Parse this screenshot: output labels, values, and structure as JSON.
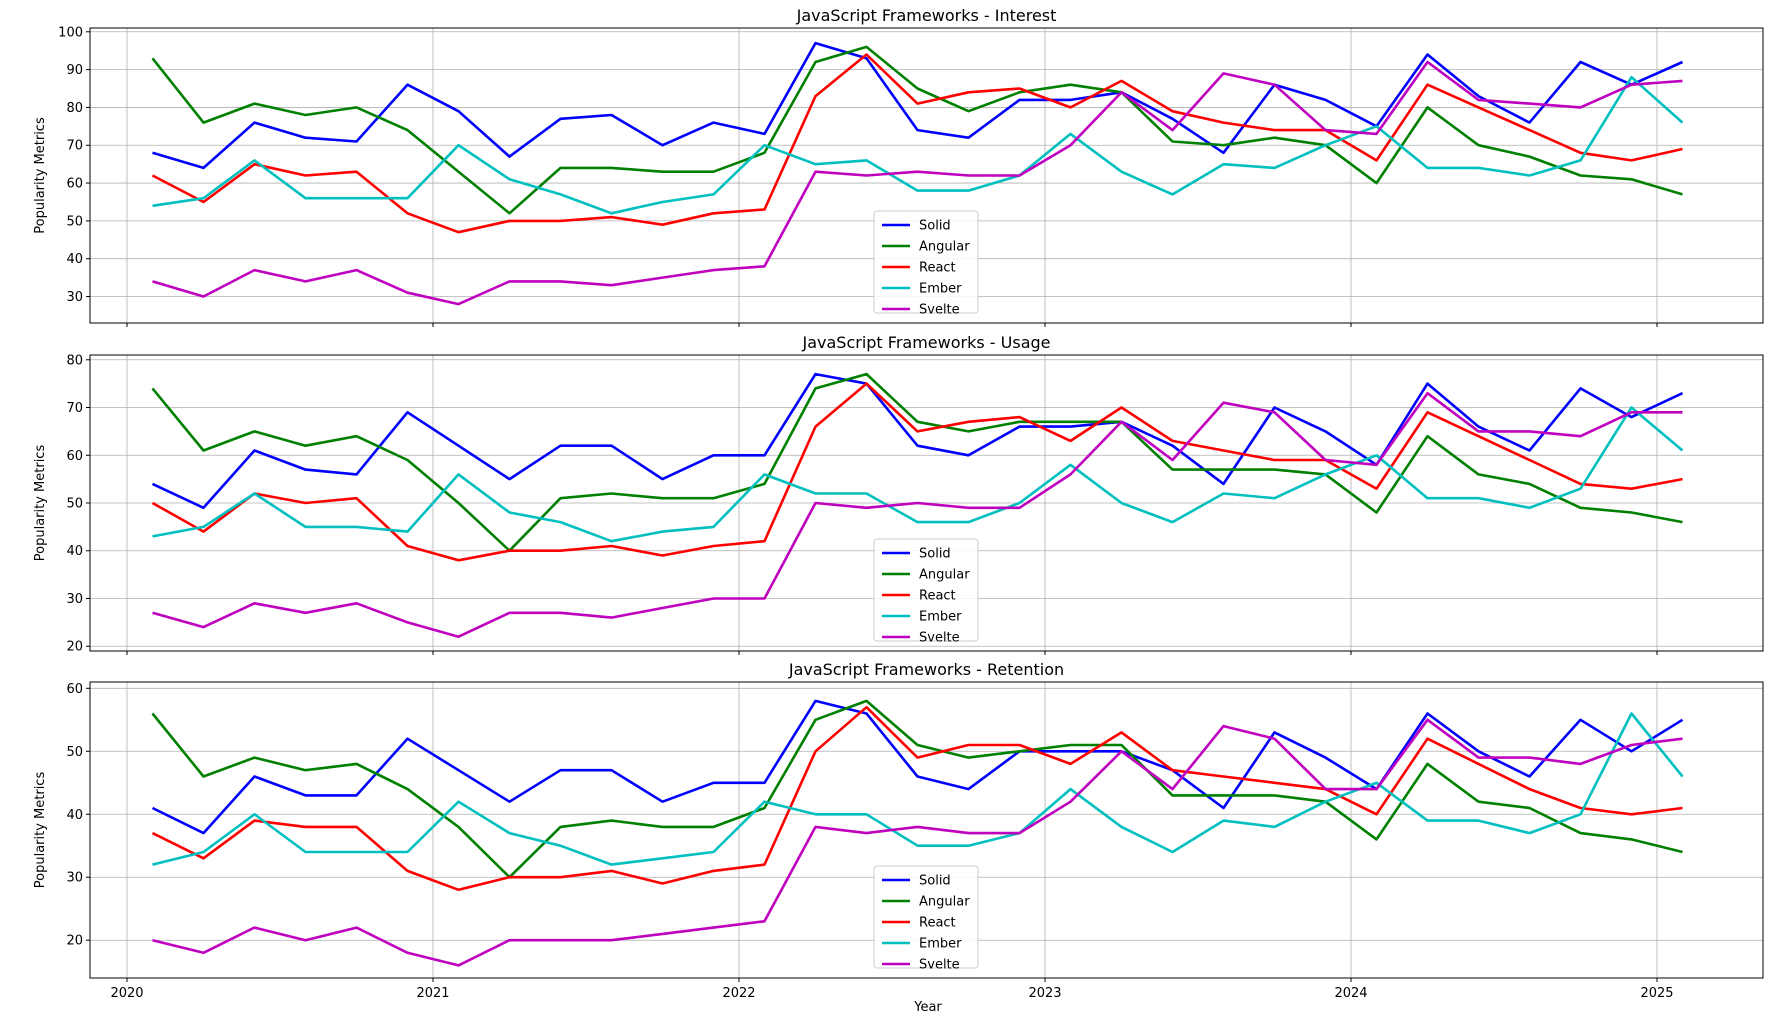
{
  "figure": {
    "xlabel": "Year",
    "ylabel": "Popularity Metrics"
  },
  "legend": [
    "Solid",
    "Angular",
    "React",
    "Ember",
    "Svelte"
  ],
  "colors": {
    "Solid": "#0000ff",
    "Angular": "#008000",
    "React": "#ff0000",
    "Ember": "#00bfbf",
    "Svelte": "#bf00bf"
  },
  "chart_data": [
    {
      "type": "line",
      "title": "JavaScript Frameworks - Interest",
      "xlabel": "",
      "ylabel": "Popularity Metrics",
      "x": [
        "2020-02",
        "2020-04",
        "2020-06",
        "2020-08",
        "2020-10",
        "2020-12",
        "2021-02",
        "2021-04",
        "2021-06",
        "2021-08",
        "2021-10",
        "2021-12",
        "2022-02",
        "2022-04",
        "2022-06",
        "2022-08",
        "2022-10",
        "2022-12",
        "2023-02",
        "2023-04",
        "2023-06",
        "2023-08",
        "2023-10",
        "2023-12",
        "2024-02",
        "2024-04",
        "2024-06",
        "2024-08",
        "2024-10",
        "2024-12",
        "2025-02"
      ],
      "xticks": [
        "2020",
        "2021",
        "2022",
        "2023",
        "2024",
        "2025"
      ],
      "yticks": [
        30,
        40,
        50,
        60,
        70,
        80,
        90,
        100
      ],
      "ylim": [
        23,
        101
      ],
      "legend_position": "lower center",
      "grid": true,
      "series": [
        {
          "name": "Solid",
          "values": [
            68,
            64,
            76,
            72,
            71,
            86,
            79,
            67,
            77,
            78,
            70,
            76,
            73,
            97,
            93,
            74,
            72,
            82,
            82,
            84,
            77,
            68,
            86,
            82,
            75,
            94,
            83,
            76,
            92,
            86,
            92
          ]
        },
        {
          "name": "Angular",
          "values": [
            93,
            76,
            81,
            78,
            80,
            74,
            63,
            52,
            64,
            64,
            63,
            63,
            68,
            92,
            96,
            85,
            79,
            84,
            86,
            84,
            71,
            70,
            72,
            70,
            60,
            80,
            70,
            67,
            62,
            61,
            57
          ]
        },
        {
          "name": "React",
          "values": [
            62,
            55,
            65,
            62,
            63,
            52,
            47,
            50,
            50,
            51,
            49,
            52,
            53,
            83,
            94,
            81,
            84,
            85,
            80,
            87,
            79,
            76,
            74,
            74,
            66,
            86,
            80,
            74,
            68,
            66,
            69
          ]
        },
        {
          "name": "Ember",
          "values": [
            54,
            56,
            66,
            56,
            56,
            56,
            70,
            61,
            57,
            52,
            55,
            57,
            70,
            65,
            66,
            58,
            58,
            62,
            73,
            63,
            57,
            65,
            64,
            70,
            75,
            64,
            64,
            62,
            66,
            88,
            76
          ]
        },
        {
          "name": "Svelte",
          "values": [
            34,
            30,
            37,
            34,
            37,
            31,
            28,
            34,
            34,
            33,
            35,
            37,
            38,
            63,
            62,
            63,
            62,
            62,
            70,
            84,
            74,
            89,
            86,
            74,
            73,
            92,
            82,
            81,
            80,
            86,
            87
          ]
        }
      ]
    },
    {
      "type": "line",
      "title": "JavaScript Frameworks - Usage",
      "xlabel": "",
      "ylabel": "Popularity Metrics",
      "x": [
        "2020-02",
        "2020-04",
        "2020-06",
        "2020-08",
        "2020-10",
        "2020-12",
        "2021-02",
        "2021-04",
        "2021-06",
        "2021-08",
        "2021-10",
        "2021-12",
        "2022-02",
        "2022-04",
        "2022-06",
        "2022-08",
        "2022-10",
        "2022-12",
        "2023-02",
        "2023-04",
        "2023-06",
        "2023-08",
        "2023-10",
        "2023-12",
        "2024-02",
        "2024-04",
        "2024-06",
        "2024-08",
        "2024-10",
        "2024-12",
        "2025-02"
      ],
      "xticks": [
        "2020",
        "2021",
        "2022",
        "2023",
        "2024",
        "2025"
      ],
      "yticks": [
        20,
        30,
        40,
        50,
        60,
        70,
        80
      ],
      "ylim": [
        19,
        81
      ],
      "legend_position": "lower center",
      "grid": true,
      "series": [
        {
          "name": "Solid",
          "values": [
            54,
            49,
            61,
            57,
            56,
            69,
            62,
            55,
            62,
            62,
            55,
            60,
            60,
            77,
            75,
            62,
            60,
            66,
            66,
            67,
            62,
            54,
            70,
            65,
            58,
            75,
            66,
            61,
            74,
            68,
            73
          ]
        },
        {
          "name": "Angular",
          "values": [
            74,
            61,
            65,
            62,
            64,
            59,
            50,
            40,
            51,
            52,
            51,
            51,
            54,
            74,
            77,
            67,
            65,
            67,
            67,
            67,
            57,
            57,
            57,
            56,
            48,
            64,
            56,
            54,
            49,
            48,
            46
          ]
        },
        {
          "name": "React",
          "values": [
            50,
            44,
            52,
            50,
            51,
            41,
            38,
            40,
            40,
            41,
            39,
            41,
            42,
            66,
            75,
            65,
            67,
            68,
            63,
            70,
            63,
            61,
            59,
            59,
            53,
            69,
            64,
            59,
            54,
            53,
            55
          ]
        },
        {
          "name": "Ember",
          "values": [
            43,
            45,
            52,
            45,
            45,
            44,
            56,
            48,
            46,
            42,
            44,
            45,
            56,
            52,
            52,
            46,
            46,
            50,
            58,
            50,
            46,
            52,
            51,
            56,
            60,
            51,
            51,
            49,
            53,
            70,
            61
          ]
        },
        {
          "name": "Svelte",
          "values": [
            27,
            24,
            29,
            27,
            29,
            25,
            22,
            27,
            27,
            26,
            28,
            30,
            30,
            50,
            49,
            50,
            49,
            49,
            56,
            67,
            59,
            71,
            69,
            59,
            58,
            73,
            65,
            65,
            64,
            69,
            69
          ]
        }
      ]
    },
    {
      "type": "line",
      "title": "JavaScript Frameworks - Retention",
      "xlabel": "Year",
      "ylabel": "Popularity Metrics",
      "x": [
        "2020-02",
        "2020-04",
        "2020-06",
        "2020-08",
        "2020-10",
        "2020-12",
        "2021-02",
        "2021-04",
        "2021-06",
        "2021-08",
        "2021-10",
        "2021-12",
        "2022-02",
        "2022-04",
        "2022-06",
        "2022-08",
        "2022-10",
        "2022-12",
        "2023-02",
        "2023-04",
        "2023-06",
        "2023-08",
        "2023-10",
        "2023-12",
        "2024-02",
        "2024-04",
        "2024-06",
        "2024-08",
        "2024-10",
        "2024-12",
        "2025-02"
      ],
      "xticks": [
        "2020",
        "2021",
        "2022",
        "2023",
        "2024",
        "2025"
      ],
      "yticks": [
        20,
        30,
        40,
        50,
        60
      ],
      "ylim": [
        14,
        61
      ],
      "legend_position": "lower center",
      "grid": true,
      "series": [
        {
          "name": "Solid",
          "values": [
            41,
            37,
            46,
            43,
            43,
            52,
            47,
            42,
            47,
            47,
            42,
            45,
            45,
            58,
            56,
            46,
            44,
            50,
            50,
            50,
            47,
            41,
            53,
            49,
            44,
            56,
            50,
            46,
            55,
            50,
            55
          ]
        },
        {
          "name": "Angular",
          "values": [
            56,
            46,
            49,
            47,
            48,
            44,
            38,
            30,
            38,
            39,
            38,
            38,
            41,
            55,
            58,
            51,
            49,
            50,
            51,
            51,
            43,
            43,
            43,
            42,
            36,
            48,
            42,
            41,
            37,
            36,
            34
          ]
        },
        {
          "name": "React",
          "values": [
            37,
            33,
            39,
            38,
            38,
            31,
            28,
            30,
            30,
            31,
            29,
            31,
            32,
            50,
            57,
            49,
            51,
            51,
            48,
            53,
            47,
            46,
            45,
            44,
            40,
            52,
            48,
            44,
            41,
            40,
            41
          ]
        },
        {
          "name": "Ember",
          "values": [
            32,
            34,
            40,
            34,
            34,
            34,
            42,
            37,
            35,
            32,
            33,
            34,
            42,
            40,
            40,
            35,
            35,
            37,
            44,
            38,
            34,
            39,
            38,
            42,
            45,
            39,
            39,
            37,
            40,
            56,
            46
          ]
        },
        {
          "name": "Svelte",
          "values": [
            20,
            18,
            22,
            20,
            22,
            18,
            16,
            20,
            20,
            20,
            21,
            22,
            23,
            38,
            37,
            38,
            37,
            37,
            42,
            50,
            44,
            54,
            52,
            44,
            44,
            55,
            49,
            49,
            48,
            51,
            52
          ]
        }
      ]
    }
  ]
}
